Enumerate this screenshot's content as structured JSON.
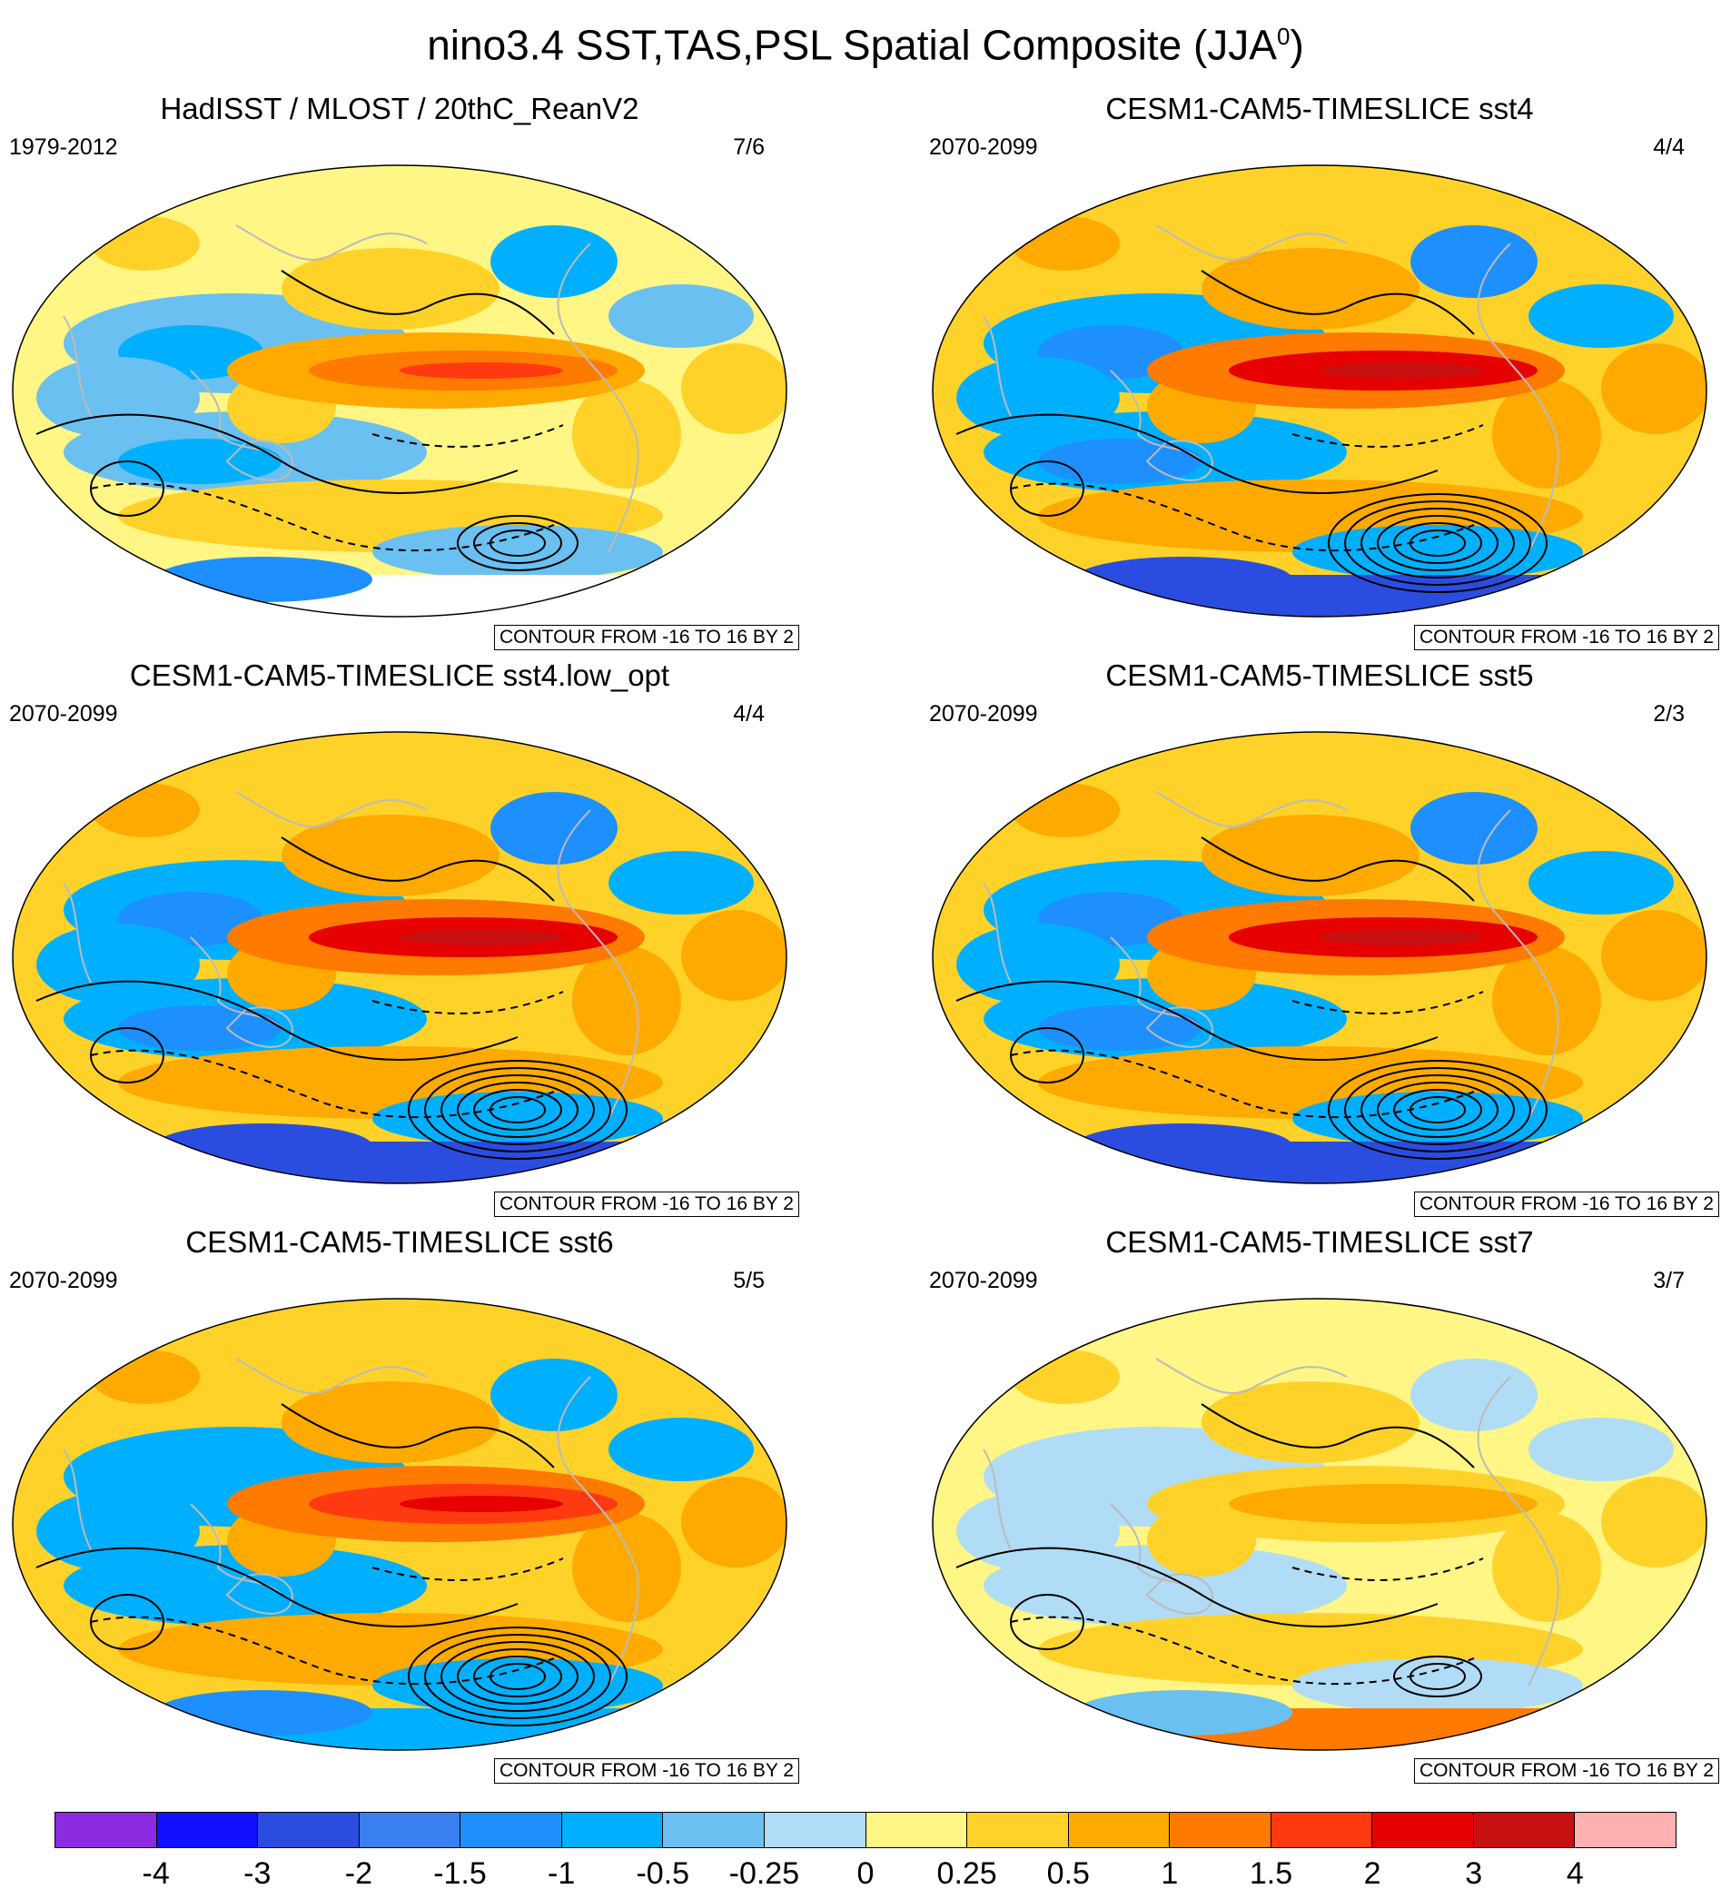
{
  "title": "nino3.4 SST,TAS,PSL Spatial Composite (JJA",
  "title_sup": "0",
  "title_close": ")",
  "contour_note": "CONTOUR FROM -16 TO 16 BY 2",
  "panels": [
    {
      "title": "HadISST / MLOST / 20thC_ReanV2",
      "period": "1979-2012",
      "count": "7/6",
      "style": "obs"
    },
    {
      "title": "CESM1-CAM5-TIMESLICE sst4",
      "period": "2070-2099",
      "count": "4/4",
      "style": "strong"
    },
    {
      "title": "CESM1-CAM5-TIMESLICE sst4.low_opt",
      "period": "2070-2099",
      "count": "4/4",
      "style": "strong"
    },
    {
      "title": "CESM1-CAM5-TIMESLICE sst5",
      "period": "2070-2099",
      "count": "2/3",
      "style": "strong"
    },
    {
      "title": "CESM1-CAM5-TIMESLICE sst6",
      "period": "2070-2099",
      "count": "5/5",
      "style": "mid"
    },
    {
      "title": "CESM1-CAM5-TIMESLICE sst7",
      "period": "2070-2099",
      "count": "3/7",
      "style": "weak"
    }
  ],
  "colorbar": {
    "colors": [
      "#8a2be2",
      "#1010ff",
      "#2a4de0",
      "#3a7ff0",
      "#1e8fff",
      "#00b0ff",
      "#6ac0f0",
      "#b0dcf5",
      "#fff685",
      "#ffd22a",
      "#ffaa00",
      "#ff7a00",
      "#ff3a10",
      "#e60000",
      "#c81010",
      "#ffb0b0"
    ],
    "labels": [
      "-4",
      "-3",
      "-2",
      "-1.5",
      "-1",
      "-0.5",
      "-0.25",
      "0",
      "0.25",
      "0.5",
      "1",
      "1.5",
      "2",
      "3",
      "4"
    ]
  }
}
